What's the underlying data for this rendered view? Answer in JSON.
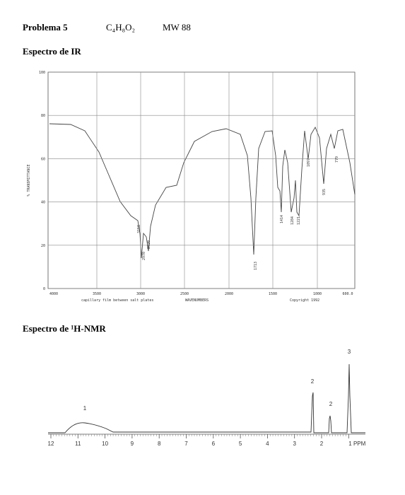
{
  "header": {
    "problem": "Problema 5",
    "formula": "C₄H₈O₂",
    "mw": "MW 88"
  },
  "ir": {
    "title": "Espectro de IR",
    "y_axis_label": "% TRANSMITTANCE",
    "yticks": [
      "100",
      "80",
      "60",
      "40",
      "20",
      "0"
    ],
    "xticks": [
      "4000",
      "3500",
      "3000",
      "2500",
      "2000",
      "1500",
      "1000",
      "600.0"
    ],
    "peaks": [
      "3150",
      "2970",
      "2920",
      "1713",
      "1414",
      "1284",
      "1221",
      "1097",
      "935",
      "779"
    ],
    "sample_note": "capillary film between salt plates",
    "x_axis_label": "WAVENUMBERS",
    "copyright": "Copyright 1992"
  },
  "nmr": {
    "title": "Espectro de ¹H-NMR",
    "xticks": [
      "12",
      "11",
      "10",
      "9",
      "8",
      "7",
      "6",
      "5",
      "4",
      "3",
      "2",
      "1 PPM"
    ],
    "peak_labels": [
      "1",
      "2",
      "2",
      "3"
    ]
  }
}
